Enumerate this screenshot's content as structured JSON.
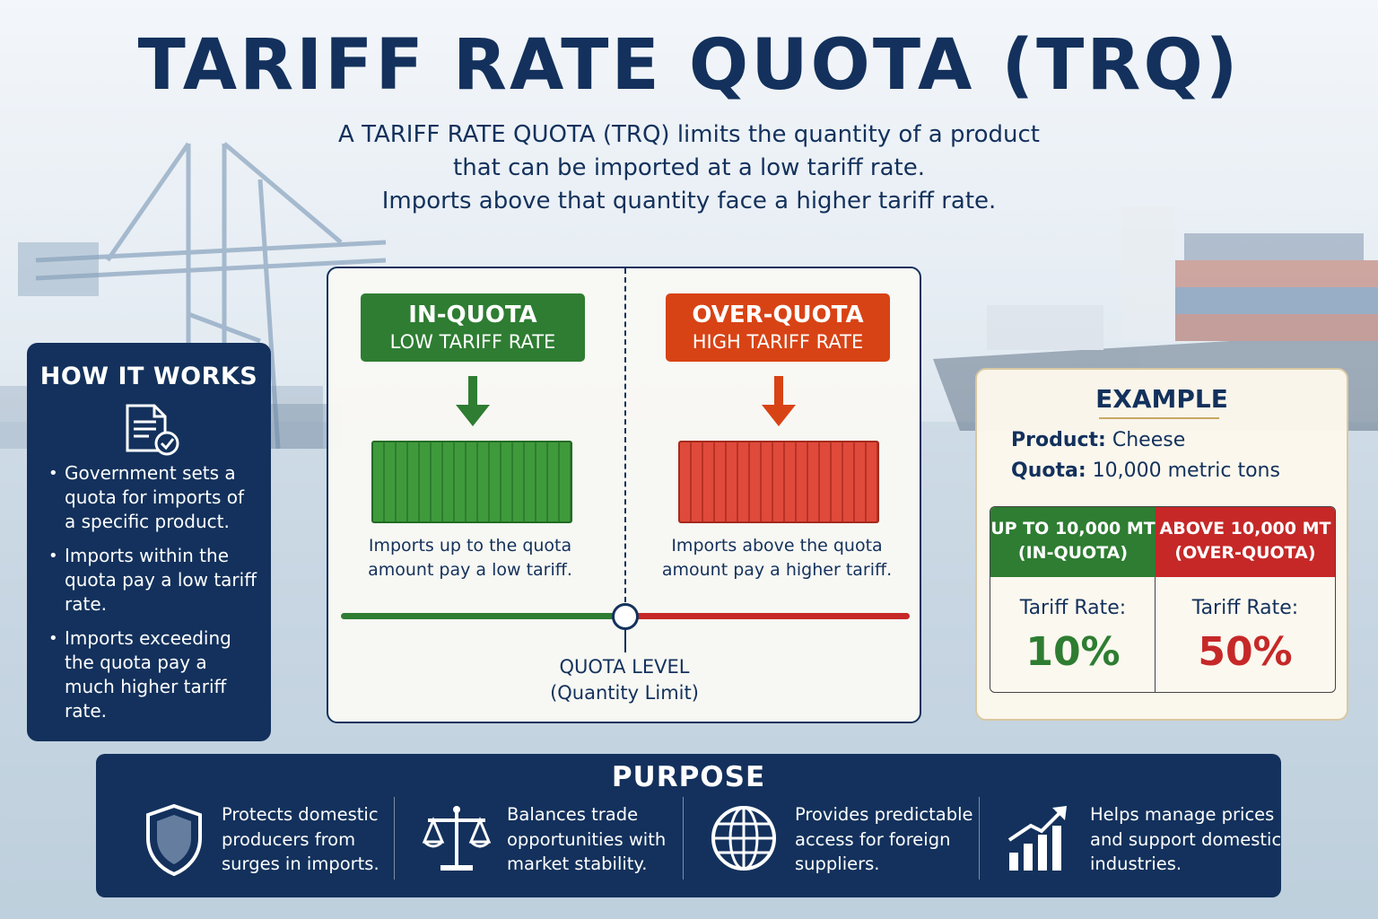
{
  "title": "TARIFF RATE QUOTA (TRQ)",
  "subtitle": {
    "line1": "A TARIFF RATE QUOTA (TRQ) limits the quantity of a product",
    "line2": "that can be imported at a low tariff rate.",
    "line3": "Imports above that quantity face a higher tariff rate."
  },
  "how_it_works": {
    "heading": "HOW IT WORKS",
    "icon": "document-check-icon",
    "items": [
      "Government sets a quota for imports of a specific product.",
      "Imports within the quota pay a low tariff rate.",
      "Imports exceeding the quota pay a much higher tariff rate."
    ]
  },
  "diagram": {
    "in_quota": {
      "title": "IN-QUOTA",
      "subtitle": "LOW TARIFF RATE",
      "description_l1": "Imports up to the quota",
      "description_l2": "amount pay a low tariff.",
      "color": "#2e7d32"
    },
    "over_quota": {
      "title": "OVER-QUOTA",
      "subtitle": "HIGH TARIFF RATE",
      "description_l1": "Imports above the quota",
      "description_l2": "amount pay a higher tariff.",
      "color": "#d84315"
    },
    "quota_level": "QUOTA LEVEL",
    "quota_level_sub": "(Quantity Limit)"
  },
  "example": {
    "heading": "EXAMPLE",
    "product_label": "Product:",
    "product_value": "Cheese",
    "quota_label": "Quota:",
    "quota_value": "10,000 metric tons",
    "in_quota_header_l1": "UP TO 10,000 MT",
    "in_quota_header_l2": "(IN-QUOTA)",
    "over_quota_header_l1": "ABOVE 10,000 MT",
    "over_quota_header_l2": "(OVER-QUOTA)",
    "rate_label": "Tariff Rate:",
    "in_quota_rate": "10%",
    "over_quota_rate": "50%",
    "green": "#2e7d32",
    "red": "#c62828"
  },
  "purpose": {
    "heading": "PURPOSE",
    "items": [
      {
        "icon": "shield-icon",
        "l1": "Protects domestic",
        "l2": "producers from",
        "l3": "surges in imports."
      },
      {
        "icon": "scales-icon",
        "l1": "Balances trade",
        "l2": "opportunities with",
        "l3": "market stability."
      },
      {
        "icon": "globe-icon",
        "l1": "Provides predictable",
        "l2": "access for foreign",
        "l3": "suppliers."
      },
      {
        "icon": "growth-chart-icon",
        "l1": "Helps manage prices",
        "l2": "and support domestic",
        "l3": "industries."
      }
    ]
  },
  "colors": {
    "navy": "#13315c",
    "green": "#2e7d32",
    "red": "#c62828"
  }
}
